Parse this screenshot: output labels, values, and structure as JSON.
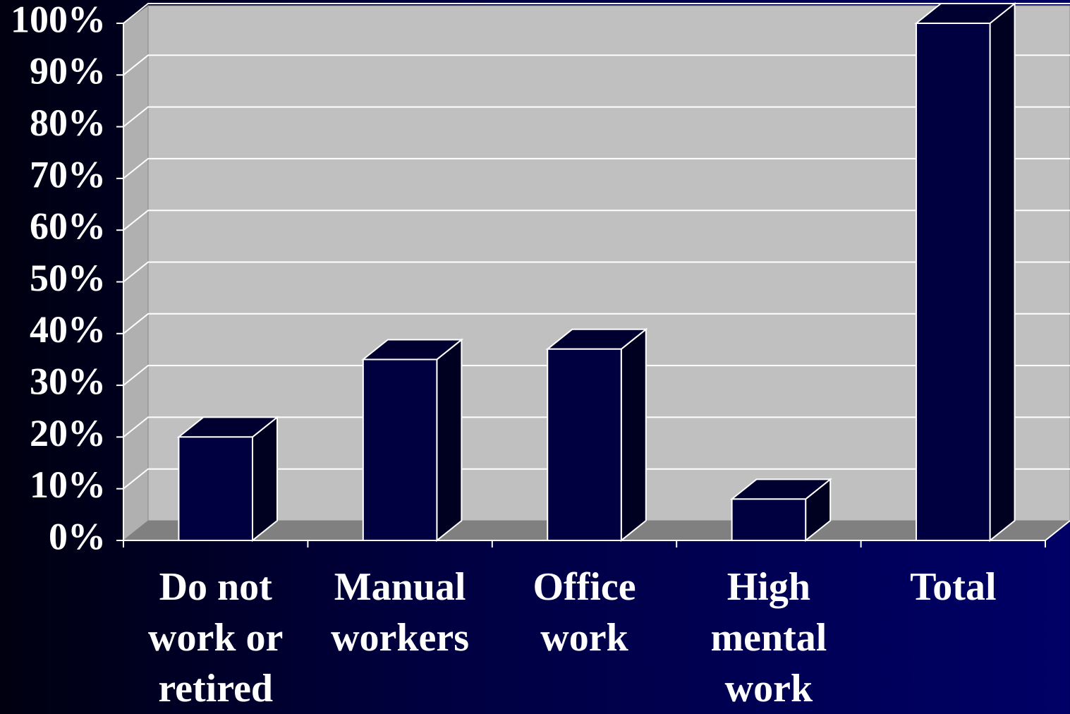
{
  "chart_data": {
    "type": "bar",
    "categories": [
      "Do not work or retired",
      "Manual workers",
      "Office work",
      "High mental work",
      "Total"
    ],
    "values": [
      20,
      35,
      37,
      8,
      100
    ],
    "color": "#000040",
    "ylim": [
      0,
      100
    ],
    "yticks": [
      {
        "value": 0,
        "label": "0%"
      },
      {
        "value": 10,
        "label": "10%"
      },
      {
        "value": 20,
        "label": "20%"
      },
      {
        "value": 30,
        "label": "30%"
      },
      {
        "value": 40,
        "label": "40%"
      },
      {
        "value": 50,
        "label": "50%"
      },
      {
        "value": 60,
        "label": "60%"
      },
      {
        "value": 70,
        "label": "70%"
      },
      {
        "value": 80,
        "label": "80%"
      },
      {
        "value": 90,
        "label": "90%"
      },
      {
        "value": 100,
        "label": "100%"
      }
    ],
    "grid": true
  }
}
